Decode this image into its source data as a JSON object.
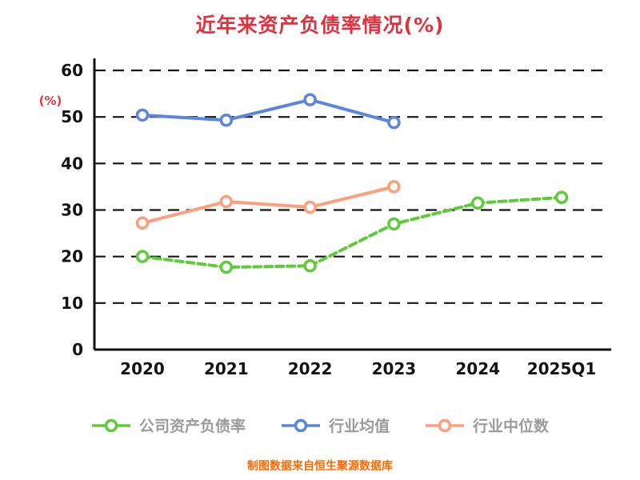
{
  "title": "近年来资产负债率情况(%)",
  "footer": "制图数据来自恒生聚源数据库",
  "colors": {
    "title_red": "#e0323e",
    "footer_orange": "#ff6a00",
    "axis_black": "#111111",
    "legend_text_gray": "#9b9b9b",
    "series_green": "#5ecb3b",
    "series_blue": "#5b86e0",
    "series_orange": "#ff9e7d"
  },
  "chart_data": {
    "type": "line",
    "title": "近年来资产负债率情况(%)",
    "ylabel": "(%)",
    "xlabel": "",
    "categories": [
      "2020",
      "2021",
      "2022",
      "2023",
      "2024",
      "2025Q1"
    ],
    "series": [
      {
        "name": "公司资产负债率",
        "color": "#5ecb3b",
        "dash": "dashed",
        "values": [
          20,
          17.7,
          18,
          27,
          31.5,
          32.7
        ]
      },
      {
        "name": "行业均值",
        "color": "#5b86e0",
        "dash": "solid",
        "values": [
          50.4,
          49.3,
          53.7,
          48.8,
          null,
          null
        ]
      },
      {
        "name": "行业中位数",
        "color": "#ff9e7d",
        "dash": "solid",
        "values": [
          27.2,
          31.8,
          30.6,
          35,
          null,
          null
        ]
      }
    ],
    "ylim": [
      0,
      60
    ],
    "yticks": [
      0,
      10,
      20,
      30,
      40,
      50,
      60
    ],
    "grid": "dashed horizontal gridlines",
    "legend_position": "bottom",
    "marker": "circle, white fill, colored ring"
  }
}
